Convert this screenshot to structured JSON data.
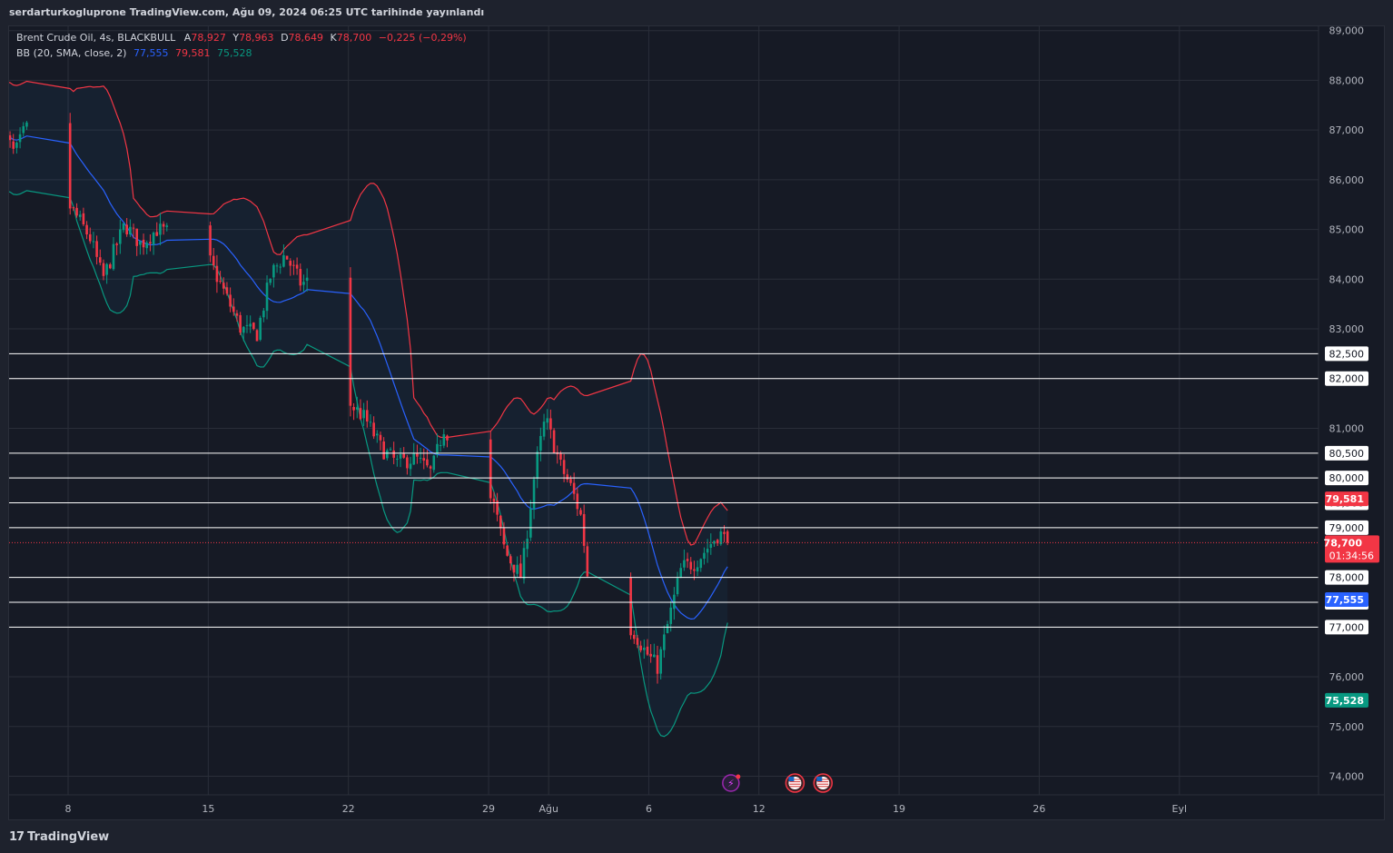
{
  "header": {
    "published": "serdarturkogluprone TradingView.com, Ağu 09, 2024 06:25 UTC tarihinde yayınlandı"
  },
  "legend": {
    "symbol": "Brent Crude Oil, 4s, BLACKBULL",
    "open_label": "A",
    "open_value": "78,927",
    "high_label": "Y",
    "high_value": "78,963",
    "low_label": "D",
    "low_value": "78,649",
    "close_label": "K",
    "close_value": "78,700",
    "change": "−0,225 (−0,29%)",
    "bb_label": "BB (20, SMA, close, 2)",
    "bb_basis": "77,555",
    "bb_upper": "79,581",
    "bb_lower": "75,528"
  },
  "footer": {
    "brand": "TradingView"
  },
  "colors": {
    "up": "#089981",
    "down": "#f23645",
    "basis": "#2962ff",
    "upper": "#f23645",
    "lower": "#089981",
    "band_fill": "#2196f3",
    "level_line": "#ffffff",
    "grid": "#2a2e39",
    "axis_text": "#b2b5be",
    "background": "#161a25"
  },
  "chart_data": {
    "type": "candlestick",
    "symbol": "Brent Crude Oil",
    "timeframe": "4s",
    "y_axis": {
      "side": "right",
      "range": [
        73.7,
        89.3
      ],
      "ticks": [
        {
          "value": 89,
          "label": "89,000"
        },
        {
          "value": 88,
          "label": "88,000"
        },
        {
          "value": 87,
          "label": "87,000"
        },
        {
          "value": 86,
          "label": "86,000"
        },
        {
          "value": 85,
          "label": "85,000"
        },
        {
          "value": 84,
          "label": "84,000"
        },
        {
          "value": 83,
          "label": "83,000"
        },
        {
          "value": 81,
          "label": "81,000"
        },
        {
          "value": 76,
          "label": "76,000"
        },
        {
          "value": 75,
          "label": "75,000"
        },
        {
          "value": 74,
          "label": "74,000"
        }
      ]
    },
    "x_axis": {
      "ticks": [
        {
          "day": 8,
          "label": "8"
        },
        {
          "day": 15,
          "label": "15"
        },
        {
          "day": 22,
          "label": "22"
        },
        {
          "day": 29,
          "label": "29"
        },
        {
          "day": 32,
          "label": "Ağu"
        },
        {
          "day": 37,
          "label": "6"
        },
        {
          "day": 42.5,
          "label": "12"
        },
        {
          "day": 49.5,
          "label": "19"
        },
        {
          "day": 56.5,
          "label": "26"
        },
        {
          "day": 63.5,
          "label": "Eyl"
        }
      ]
    },
    "horizontal_levels": [
      {
        "value": 82.5,
        "label": "82,500"
      },
      {
        "value": 82.0,
        "label": "82,000"
      },
      {
        "value": 80.5,
        "label": "80,500"
      },
      {
        "value": 80.0,
        "label": "80,000"
      },
      {
        "value": 79.5,
        "label": "79,500"
      },
      {
        "value": 79.0,
        "label": "79,000"
      },
      {
        "value": 78.0,
        "label": "78,000"
      },
      {
        "value": 77.5,
        "label": "77,500"
      },
      {
        "value": 77.0,
        "label": "77,000"
      }
    ],
    "price_labels": [
      {
        "value": 79.581,
        "label": "79,581",
        "kind": "upper"
      },
      {
        "value": 78.7,
        "label": "78,700",
        "sub": "01:34:56",
        "kind": "last"
      },
      {
        "value": 77.555,
        "label": "77,555",
        "kind": "basis"
      },
      {
        "value": 75.528,
        "label": "75,528",
        "kind": "lower"
      }
    ],
    "close_anchors": [
      [
        5.0,
        86.9
      ],
      [
        5.5,
        86.5
      ],
      [
        6.0,
        87.0
      ],
      [
        6.6,
        87.2
      ],
      [
        7.0,
        86.4
      ],
      [
        7.5,
        85.7
      ],
      [
        8.0,
        85.6
      ],
      [
        8.7,
        85.2
      ],
      [
        9.3,
        84.8
      ],
      [
        9.9,
        84.0
      ],
      [
        10.4,
        84.5
      ],
      [
        11.0,
        85.1
      ],
      [
        11.8,
        84.7
      ],
      [
        12.6,
        85.0
      ],
      [
        13.5,
        84.9
      ],
      [
        14.2,
        84.6
      ],
      [
        15.2,
        84.4
      ],
      [
        16.0,
        83.7
      ],
      [
        16.8,
        83.0
      ],
      [
        17.6,
        82.9
      ],
      [
        18.3,
        84.1
      ],
      [
        19.0,
        84.5
      ],
      [
        19.8,
        83.9
      ],
      [
        20.4,
        84.0
      ],
      [
        20.9,
        81.8
      ],
      [
        21.5,
        81.7
      ],
      [
        22.2,
        81.5
      ],
      [
        23.0,
        81.2
      ],
      [
        23.8,
        80.6
      ],
      [
        24.6,
        80.3
      ],
      [
        25.5,
        80.4
      ],
      [
        26.3,
        80.1
      ],
      [
        27.0,
        81.1
      ],
      [
        27.8,
        79.6
      ],
      [
        28.5,
        80.2
      ],
      [
        29.4,
        79.5
      ],
      [
        30.0,
        78.5
      ],
      [
        30.8,
        78.0
      ],
      [
        31.5,
        80.2
      ],
      [
        32.0,
        81.2
      ],
      [
        32.8,
        80.2
      ],
      [
        33.3,
        79.8
      ],
      [
        33.8,
        79.2
      ],
      [
        34.3,
        77.3
      ],
      [
        35.0,
        77.0
      ],
      [
        35.6,
        76.1
      ],
      [
        36.3,
        77.0
      ],
      [
        37.0,
        76.5
      ],
      [
        37.6,
        76.2
      ],
      [
        38.2,
        77.2
      ],
      [
        38.8,
        78.2
      ],
      [
        39.5,
        78.3
      ],
      [
        40.1,
        78.6
      ],
      [
        40.7,
        78.9
      ],
      [
        41.1,
        78.7
      ]
    ],
    "events": [
      {
        "day": 41.1,
        "kind": "earnings"
      },
      {
        "day": 44.3,
        "kind": "us-economic"
      },
      {
        "day": 45.7,
        "kind": "us-economic"
      }
    ]
  }
}
